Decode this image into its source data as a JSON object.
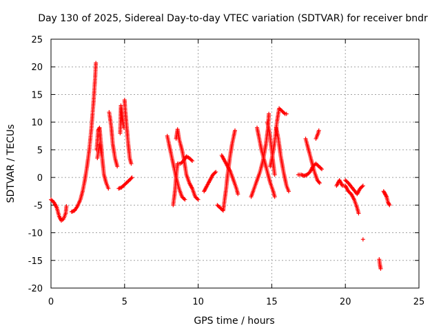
{
  "chart_data": {
    "type": "scatter",
    "title": "Day 130 of 2025, Sidereal Day-to-day VTEC variation (SDTVAR) for receiver bndr",
    "xlabel": "GPS time / hours",
    "ylabel": "SDTVAR / TECUs",
    "xlim": [
      0,
      25
    ],
    "ylim": [
      -20,
      25
    ],
    "xticks": [
      0,
      5,
      10,
      15,
      20,
      25
    ],
    "yticks": [
      -20,
      -15,
      -10,
      -5,
      0,
      5,
      10,
      15,
      20,
      25
    ],
    "grid": true,
    "marker": "+",
    "color": "#ff0000",
    "series": [
      {
        "name": "SDTVAR",
        "segments": [
          [
            [
              0.0,
              -4.0
            ],
            [
              0.2,
              -4.5
            ],
            [
              0.4,
              -5.5
            ],
            [
              0.55,
              -7.0
            ],
            [
              0.7,
              -7.8
            ],
            [
              0.85,
              -7.5
            ],
            [
              1.0,
              -6.5
            ],
            [
              1.05,
              -5.2
            ]
          ],
          [
            [
              1.4,
              -6.2
            ],
            [
              1.6,
              -6.0
            ],
            [
              1.8,
              -5.2
            ],
            [
              2.0,
              -4.0
            ],
            [
              2.15,
              -2.5
            ],
            [
              2.3,
              -0.5
            ],
            [
              2.45,
              2.0
            ],
            [
              2.6,
              5.0
            ],
            [
              2.75,
              9.0
            ],
            [
              2.9,
              14.0
            ],
            [
              3.0,
              18.0
            ],
            [
              3.05,
              20.7
            ]
          ],
          [
            [
              3.1,
              5.0
            ],
            [
              3.2,
              8.5
            ],
            [
              3.3,
              9.0
            ],
            [
              3.4,
              6.0
            ],
            [
              3.5,
              3.0
            ],
            [
              3.6,
              0.5
            ],
            [
              3.75,
              -1.0
            ],
            [
              3.9,
              -2.0
            ]
          ],
          [
            [
              3.15,
              3.5
            ],
            [
              3.3,
              6.0
            ],
            [
              3.45,
              4.0
            ]
          ],
          [
            [
              3.95,
              11.8
            ],
            [
              4.0,
              11.0
            ],
            [
              4.1,
              9.0
            ],
            [
              4.2,
              6.0
            ],
            [
              4.35,
              3.5
            ],
            [
              4.5,
              2.0
            ]
          ],
          [
            [
              4.6,
              -2.0
            ],
            [
              4.8,
              -1.8
            ],
            [
              5.0,
              -1.3
            ],
            [
              5.2,
              -0.8
            ],
            [
              5.4,
              -0.3
            ],
            [
              5.5,
              0.0
            ]
          ],
          [
            [
              4.7,
              8.0
            ],
            [
              4.75,
              13.0
            ],
            [
              4.85,
              11.0
            ],
            [
              4.95,
              9.0
            ]
          ],
          [
            [
              5.0,
              14.0
            ],
            [
              5.05,
              12.0
            ],
            [
              5.15,
              9.0
            ],
            [
              5.25,
              6.0
            ],
            [
              5.35,
              3.5
            ],
            [
              5.45,
              2.5
            ]
          ],
          [
            [
              7.9,
              7.5
            ],
            [
              8.1,
              5.0
            ],
            [
              8.3,
              2.5
            ],
            [
              8.5,
              0.0
            ],
            [
              8.7,
              -2.0
            ],
            [
              8.9,
              -3.5
            ],
            [
              9.1,
              -4.0
            ]
          ],
          [
            [
              8.3,
              -5.0
            ],
            [
              8.4,
              -3.0
            ],
            [
              8.5,
              0.0
            ],
            [
              8.6,
              2.5
            ],
            [
              8.8,
              2.5
            ],
            [
              9.0,
              3.0
            ],
            [
              9.2,
              3.8
            ],
            [
              9.4,
              3.5
            ],
            [
              9.6,
              3.0
            ]
          ],
          [
            [
              8.5,
              7.0
            ],
            [
              8.6,
              8.7
            ],
            [
              8.7,
              7.0
            ],
            [
              8.9,
              5.0
            ],
            [
              9.05,
              3.0
            ],
            [
              9.2,
              0.5
            ],
            [
              9.4,
              -1.0
            ],
            [
              9.6,
              -2.0
            ],
            [
              9.8,
              -3.5
            ],
            [
              10.0,
              -4.0
            ]
          ],
          [
            [
              10.4,
              -2.5
            ],
            [
              10.6,
              -1.5
            ],
            [
              10.8,
              -0.5
            ],
            [
              11.0,
              0.5
            ],
            [
              11.2,
              1.0
            ]
          ],
          [
            [
              11.3,
              -5.0
            ],
            [
              11.5,
              -5.5
            ],
            [
              11.7,
              -6.0
            ],
            [
              11.8,
              -4.0
            ],
            [
              11.9,
              -2.0
            ],
            [
              12.0,
              0.5
            ],
            [
              12.15,
              3.5
            ],
            [
              12.3,
              6.0
            ],
            [
              12.5,
              8.5
            ]
          ],
          [
            [
              11.6,
              4.0
            ],
            [
              11.8,
              3.0
            ],
            [
              12.0,
              2.0
            ],
            [
              12.2,
              1.0
            ],
            [
              12.4,
              -0.5
            ],
            [
              12.6,
              -2.0
            ],
            [
              12.7,
              -3.0
            ]
          ],
          [
            [
              13.6,
              -3.5
            ],
            [
              13.8,
              -2.0
            ],
            [
              14.0,
              -0.5
            ],
            [
              14.2,
              1.0
            ],
            [
              14.4,
              3.0
            ],
            [
              14.6,
              6.0
            ],
            [
              14.75,
              9.0
            ],
            [
              14.8,
              11.5
            ]
          ],
          [
            [
              14.0,
              9.0
            ],
            [
              14.15,
              7.0
            ],
            [
              14.3,
              5.0
            ],
            [
              14.5,
              3.0
            ],
            [
              14.7,
              1.0
            ],
            [
              14.9,
              -1.0
            ],
            [
              15.1,
              -2.5
            ],
            [
              15.2,
              -3.5
            ]
          ],
          [
            [
              14.9,
              2.0
            ],
            [
              15.05,
              4.0
            ],
            [
              15.2,
              6.5
            ],
            [
              15.35,
              10.0
            ],
            [
              15.5,
              12.5
            ],
            [
              15.7,
              12.0
            ],
            [
              15.9,
              11.5
            ],
            [
              16.0,
              11.5
            ]
          ],
          [
            [
              14.7,
              10.0
            ],
            [
              14.85,
              8.0
            ],
            [
              15.0,
              5.0
            ],
            [
              15.1,
              2.5
            ],
            [
              15.2,
              0.5
            ]
          ],
          [
            [
              15.3,
              9.0
            ],
            [
              15.45,
              7.0
            ],
            [
              15.6,
              4.0
            ],
            [
              15.8,
              1.0
            ],
            [
              16.0,
              -1.5
            ],
            [
              16.15,
              -2.5
            ]
          ],
          [
            [
              16.8,
              0.5
            ],
            [
              17.0,
              0.5
            ],
            [
              17.2,
              0.3
            ],
            [
              17.4,
              0.5
            ],
            [
              17.6,
              1.0
            ],
            [
              17.8,
              2.0
            ],
            [
              18.0,
              2.5
            ],
            [
              18.2,
              2.0
            ],
            [
              18.4,
              1.5
            ]
          ],
          [
            [
              17.3,
              7.0
            ],
            [
              17.5,
              5.0
            ],
            [
              17.7,
              3.0
            ],
            [
              17.9,
              1.0
            ],
            [
              18.1,
              -0.5
            ],
            [
              18.25,
              -1.0
            ]
          ],
          [
            [
              18.0,
              7.0
            ],
            [
              18.15,
              8.0
            ],
            [
              18.2,
              8.5
            ]
          ],
          [
            [
              19.4,
              -1.5
            ],
            [
              19.6,
              -0.5
            ],
            [
              19.8,
              -1.5
            ],
            [
              20.0,
              -1.5
            ],
            [
              20.2,
              -2.5
            ],
            [
              20.4,
              -3.0
            ],
            [
              20.6,
              -4.0
            ],
            [
              20.8,
              -5.5
            ],
            [
              20.9,
              -6.5
            ]
          ],
          [
            [
              20.0,
              -0.5
            ],
            [
              20.2,
              -1.0
            ],
            [
              20.5,
              -2.0
            ],
            [
              20.8,
              -3.0
            ],
            [
              21.0,
              -2.0
            ],
            [
              21.2,
              -1.5
            ]
          ],
          [
            [
              21.2,
              -11.2
            ]
          ],
          [
            [
              22.3,
              -14.8
            ],
            [
              22.35,
              -15.8
            ],
            [
              22.4,
              -16.5
            ]
          ],
          [
            [
              22.6,
              -2.5
            ],
            [
              22.7,
              -3.0
            ],
            [
              22.8,
              -3.5
            ],
            [
              22.9,
              -4.5
            ],
            [
              23.0,
              -5.0
            ]
          ]
        ]
      }
    ]
  }
}
